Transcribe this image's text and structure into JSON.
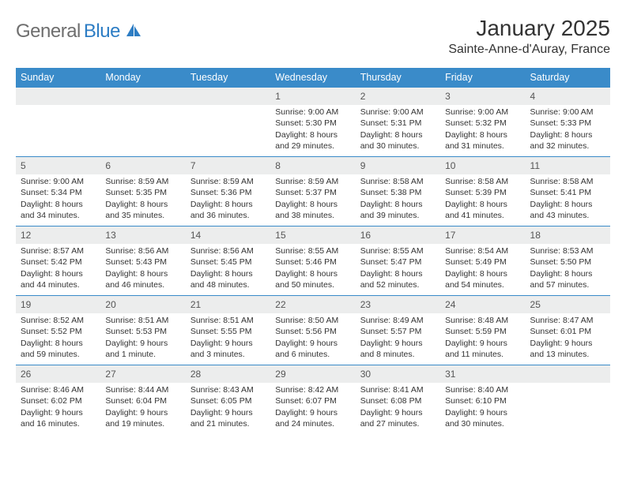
{
  "brand": {
    "part1": "General",
    "part2": "Blue"
  },
  "title": "January 2025",
  "location": "Sainte-Anne-d'Auray, France",
  "colors": {
    "header_bg": "#3a8bc9",
    "header_text": "#ffffff",
    "daynum_bg": "#eceded",
    "row_border": "#3a8bc9",
    "body_text": "#333333",
    "logo_gray": "#6e6e6e",
    "logo_blue": "#2d7dc4"
  },
  "weekdays": [
    "Sunday",
    "Monday",
    "Tuesday",
    "Wednesday",
    "Thursday",
    "Friday",
    "Saturday"
  ],
  "weeks": [
    [
      null,
      null,
      null,
      {
        "n": "1",
        "sr": "Sunrise: 9:00 AM",
        "ss": "Sunset: 5:30 PM",
        "d1": "Daylight: 8 hours",
        "d2": "and 29 minutes."
      },
      {
        "n": "2",
        "sr": "Sunrise: 9:00 AM",
        "ss": "Sunset: 5:31 PM",
        "d1": "Daylight: 8 hours",
        "d2": "and 30 minutes."
      },
      {
        "n": "3",
        "sr": "Sunrise: 9:00 AM",
        "ss": "Sunset: 5:32 PM",
        "d1": "Daylight: 8 hours",
        "d2": "and 31 minutes."
      },
      {
        "n": "4",
        "sr": "Sunrise: 9:00 AM",
        "ss": "Sunset: 5:33 PM",
        "d1": "Daylight: 8 hours",
        "d2": "and 32 minutes."
      }
    ],
    [
      {
        "n": "5",
        "sr": "Sunrise: 9:00 AM",
        "ss": "Sunset: 5:34 PM",
        "d1": "Daylight: 8 hours",
        "d2": "and 34 minutes."
      },
      {
        "n": "6",
        "sr": "Sunrise: 8:59 AM",
        "ss": "Sunset: 5:35 PM",
        "d1": "Daylight: 8 hours",
        "d2": "and 35 minutes."
      },
      {
        "n": "7",
        "sr": "Sunrise: 8:59 AM",
        "ss": "Sunset: 5:36 PM",
        "d1": "Daylight: 8 hours",
        "d2": "and 36 minutes."
      },
      {
        "n": "8",
        "sr": "Sunrise: 8:59 AM",
        "ss": "Sunset: 5:37 PM",
        "d1": "Daylight: 8 hours",
        "d2": "and 38 minutes."
      },
      {
        "n": "9",
        "sr": "Sunrise: 8:58 AM",
        "ss": "Sunset: 5:38 PM",
        "d1": "Daylight: 8 hours",
        "d2": "and 39 minutes."
      },
      {
        "n": "10",
        "sr": "Sunrise: 8:58 AM",
        "ss": "Sunset: 5:39 PM",
        "d1": "Daylight: 8 hours",
        "d2": "and 41 minutes."
      },
      {
        "n": "11",
        "sr": "Sunrise: 8:58 AM",
        "ss": "Sunset: 5:41 PM",
        "d1": "Daylight: 8 hours",
        "d2": "and 43 minutes."
      }
    ],
    [
      {
        "n": "12",
        "sr": "Sunrise: 8:57 AM",
        "ss": "Sunset: 5:42 PM",
        "d1": "Daylight: 8 hours",
        "d2": "and 44 minutes."
      },
      {
        "n": "13",
        "sr": "Sunrise: 8:56 AM",
        "ss": "Sunset: 5:43 PM",
        "d1": "Daylight: 8 hours",
        "d2": "and 46 minutes."
      },
      {
        "n": "14",
        "sr": "Sunrise: 8:56 AM",
        "ss": "Sunset: 5:45 PM",
        "d1": "Daylight: 8 hours",
        "d2": "and 48 minutes."
      },
      {
        "n": "15",
        "sr": "Sunrise: 8:55 AM",
        "ss": "Sunset: 5:46 PM",
        "d1": "Daylight: 8 hours",
        "d2": "and 50 minutes."
      },
      {
        "n": "16",
        "sr": "Sunrise: 8:55 AM",
        "ss": "Sunset: 5:47 PM",
        "d1": "Daylight: 8 hours",
        "d2": "and 52 minutes."
      },
      {
        "n": "17",
        "sr": "Sunrise: 8:54 AM",
        "ss": "Sunset: 5:49 PM",
        "d1": "Daylight: 8 hours",
        "d2": "and 54 minutes."
      },
      {
        "n": "18",
        "sr": "Sunrise: 8:53 AM",
        "ss": "Sunset: 5:50 PM",
        "d1": "Daylight: 8 hours",
        "d2": "and 57 minutes."
      }
    ],
    [
      {
        "n": "19",
        "sr": "Sunrise: 8:52 AM",
        "ss": "Sunset: 5:52 PM",
        "d1": "Daylight: 8 hours",
        "d2": "and 59 minutes."
      },
      {
        "n": "20",
        "sr": "Sunrise: 8:51 AM",
        "ss": "Sunset: 5:53 PM",
        "d1": "Daylight: 9 hours",
        "d2": "and 1 minute."
      },
      {
        "n": "21",
        "sr": "Sunrise: 8:51 AM",
        "ss": "Sunset: 5:55 PM",
        "d1": "Daylight: 9 hours",
        "d2": "and 3 minutes."
      },
      {
        "n": "22",
        "sr": "Sunrise: 8:50 AM",
        "ss": "Sunset: 5:56 PM",
        "d1": "Daylight: 9 hours",
        "d2": "and 6 minutes."
      },
      {
        "n": "23",
        "sr": "Sunrise: 8:49 AM",
        "ss": "Sunset: 5:57 PM",
        "d1": "Daylight: 9 hours",
        "d2": "and 8 minutes."
      },
      {
        "n": "24",
        "sr": "Sunrise: 8:48 AM",
        "ss": "Sunset: 5:59 PM",
        "d1": "Daylight: 9 hours",
        "d2": "and 11 minutes."
      },
      {
        "n": "25",
        "sr": "Sunrise: 8:47 AM",
        "ss": "Sunset: 6:01 PM",
        "d1": "Daylight: 9 hours",
        "d2": "and 13 minutes."
      }
    ],
    [
      {
        "n": "26",
        "sr": "Sunrise: 8:46 AM",
        "ss": "Sunset: 6:02 PM",
        "d1": "Daylight: 9 hours",
        "d2": "and 16 minutes."
      },
      {
        "n": "27",
        "sr": "Sunrise: 8:44 AM",
        "ss": "Sunset: 6:04 PM",
        "d1": "Daylight: 9 hours",
        "d2": "and 19 minutes."
      },
      {
        "n": "28",
        "sr": "Sunrise: 8:43 AM",
        "ss": "Sunset: 6:05 PM",
        "d1": "Daylight: 9 hours",
        "d2": "and 21 minutes."
      },
      {
        "n": "29",
        "sr": "Sunrise: 8:42 AM",
        "ss": "Sunset: 6:07 PM",
        "d1": "Daylight: 9 hours",
        "d2": "and 24 minutes."
      },
      {
        "n": "30",
        "sr": "Sunrise: 8:41 AM",
        "ss": "Sunset: 6:08 PM",
        "d1": "Daylight: 9 hours",
        "d2": "and 27 minutes."
      },
      {
        "n": "31",
        "sr": "Sunrise: 8:40 AM",
        "ss": "Sunset: 6:10 PM",
        "d1": "Daylight: 9 hours",
        "d2": "and 30 minutes."
      },
      null
    ]
  ]
}
